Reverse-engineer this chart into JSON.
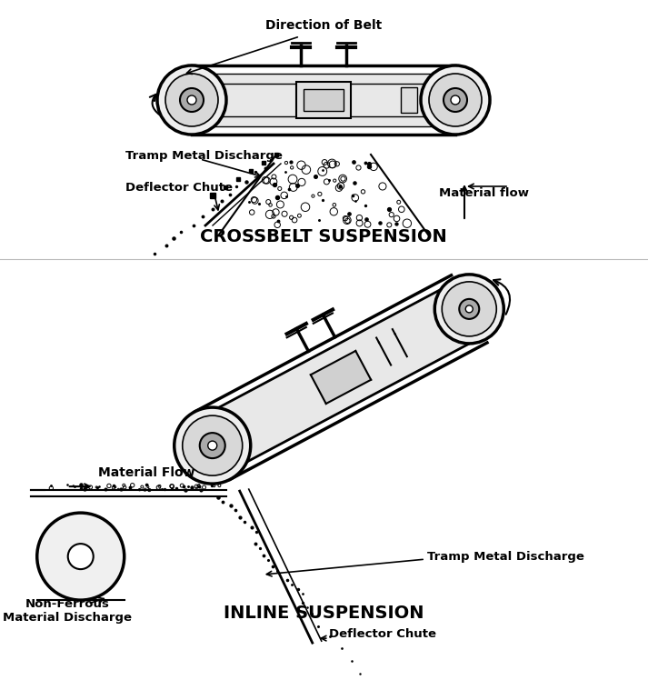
{
  "bg_color": "#ffffff",
  "line_color": "#000000",
  "top_title": "CROSSBELT SUSPENSION",
  "bottom_title": "INLINE SUSPENSION",
  "crossbelt_labels": {
    "direction_of_belt": "Direction of Belt",
    "tramp_metal": "Tramp Metal Discharge",
    "deflector_chute": "Deflector Chute",
    "material_flow": "Material flow"
  },
  "inline_labels": {
    "material_flow": "Material Flow",
    "tramp_metal": "Tramp Metal Discharge",
    "non_ferrous": "Non-Ferrous\nMaterial Discharge",
    "deflector_chute": "Deflector Chute"
  },
  "figsize": [
    7.13,
    7.59
  ],
  "dpi": 100
}
